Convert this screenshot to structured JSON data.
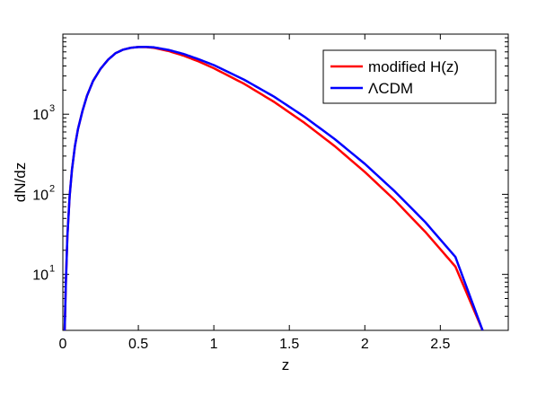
{
  "chart_data": {
    "type": "line",
    "title": "",
    "xlabel": "z",
    "ylabel": "dN/dz",
    "xlim": [
      0,
      2.95
    ],
    "ylim": [
      2,
      10000
    ],
    "yscale": "log",
    "grid": false,
    "legend_position": "top-right",
    "x_ticks": [
      {
        "value": 0,
        "label": "0"
      },
      {
        "value": 0.5,
        "label": "0.5"
      },
      {
        "value": 1,
        "label": "1"
      },
      {
        "value": 1.5,
        "label": "1.5"
      },
      {
        "value": 2,
        "label": "2"
      },
      {
        "value": 2.5,
        "label": "2.5"
      }
    ],
    "y_ticks": [
      {
        "value": 10,
        "base": "10",
        "exp": "1"
      },
      {
        "value": 100,
        "base": "10",
        "exp": "2"
      },
      {
        "value": 1000,
        "base": "10",
        "exp": "3"
      }
    ],
    "series": [
      {
        "name": "modified H(z)",
        "color": "#ff0000",
        "x": [
          0.012,
          0.02,
          0.03,
          0.045,
          0.06,
          0.08,
          0.1,
          0.13,
          0.16,
          0.2,
          0.25,
          0.3,
          0.35,
          0.4,
          0.45,
          0.5,
          0.55,
          0.6,
          0.7,
          0.8,
          0.9,
          1.0,
          1.2,
          1.4,
          1.6,
          1.8,
          2.0,
          2.2,
          2.4,
          2.6,
          2.78
        ],
        "y": [
          2,
          8,
          30,
          95,
          200,
          400,
          650,
          1100,
          1700,
          2600,
          3700,
          4800,
          5800,
          6400,
          6750,
          6900,
          6880,
          6750,
          6150,
          5380,
          4550,
          3750,
          2400,
          1420,
          780,
          400,
          190,
          84,
          34,
          12.5,
          2
        ]
      },
      {
        "name": "ΛCDM",
        "color": "#0000ff",
        "x": [
          0.012,
          0.02,
          0.03,
          0.045,
          0.06,
          0.08,
          0.1,
          0.13,
          0.16,
          0.2,
          0.25,
          0.3,
          0.35,
          0.4,
          0.45,
          0.5,
          0.55,
          0.6,
          0.7,
          0.8,
          0.9,
          1.0,
          1.2,
          1.4,
          1.6,
          1.8,
          2.0,
          2.2,
          2.4,
          2.6,
          2.78
        ],
        "y": [
          2,
          8,
          30,
          95,
          200,
          400,
          650,
          1100,
          1700,
          2600,
          3700,
          4800,
          5800,
          6400,
          6750,
          6900,
          6920,
          6850,
          6350,
          5650,
          4850,
          4100,
          2700,
          1650,
          930,
          490,
          240,
          108,
          45,
          16.5,
          2
        ]
      }
    ]
  }
}
